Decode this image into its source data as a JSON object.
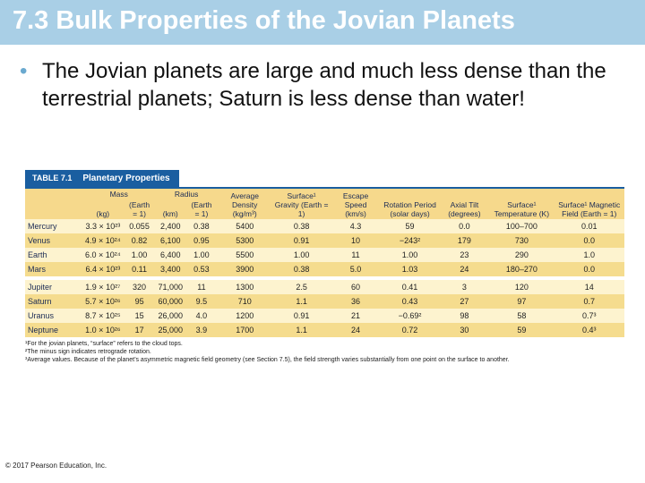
{
  "slide": {
    "title": "7.3 Bulk Properties of the Jovian Planets",
    "bullet": "The Jovian planets are large and much less dense than the terrestrial planets; Saturn is less dense than water!",
    "copyright": "© 2017 Pearson Education, Inc."
  },
  "table": {
    "number": "TABLE 7.1",
    "title": "Planetary Properties",
    "group_mass": "Mass",
    "group_radius": "Radius",
    "headers": {
      "mass_kg": "(kg)",
      "mass_earth": "(Earth = 1)",
      "radius_km": "(km)",
      "radius_earth": "(Earth = 1)",
      "density": "Average Density (kg/m³)",
      "gravity": "Surface¹ Gravity (Earth = 1)",
      "escape": "Escape Speed (km/s)",
      "rotation": "Rotation Period (solar days)",
      "tilt": "Axial Tilt (degrees)",
      "temperature": "Surface¹ Temperature (K)",
      "magnetic": "Surface¹ Magnetic Field (Earth = 1)"
    },
    "rows": [
      {
        "planet": "Mercury",
        "mass": "3.3 × 10²³",
        "mass_e": "0.055",
        "radius": "2,400",
        "radius_e": "0.38",
        "density": "5400",
        "gravity": "0.38",
        "escape": "4.3",
        "rotation": "59",
        "tilt": "0.0",
        "temp": "100–700",
        "mag": "0.01"
      },
      {
        "planet": "Venus",
        "mass": "4.9 × 10²⁴",
        "mass_e": "0.82",
        "radius": "6,100",
        "radius_e": "0.95",
        "density": "5300",
        "gravity": "0.91",
        "escape": "10",
        "rotation": "−243²",
        "tilt": "179",
        "temp": "730",
        "mag": "0.0"
      },
      {
        "planet": "Earth",
        "mass": "6.0 × 10²⁴",
        "mass_e": "1.00",
        "radius": "6,400",
        "radius_e": "1.00",
        "density": "5500",
        "gravity": "1.00",
        "escape": "11",
        "rotation": "1.00",
        "tilt": "23",
        "temp": "290",
        "mag": "1.0"
      },
      {
        "planet": "Mars",
        "mass": "6.4 × 10²³",
        "mass_e": "0.11",
        "radius": "3,400",
        "radius_e": "0.53",
        "density": "3900",
        "gravity": "0.38",
        "escape": "5.0",
        "rotation": "1.03",
        "tilt": "24",
        "temp": "180–270",
        "mag": "0.0"
      },
      {
        "planet": "Jupiter",
        "mass": "1.9 × 10²⁷",
        "mass_e": "320",
        "radius": "71,000",
        "radius_e": "11",
        "density": "1300",
        "gravity": "2.5",
        "escape": "60",
        "rotation": "0.41",
        "tilt": "3",
        "temp": "120",
        "mag": "14"
      },
      {
        "planet": "Saturn",
        "mass": "5.7 × 10²⁶",
        "mass_e": "95",
        "radius": "60,000",
        "radius_e": "9.5",
        "density": "710",
        "gravity": "1.1",
        "escape": "36",
        "rotation": "0.43",
        "tilt": "27",
        "temp": "97",
        "mag": "0.7"
      },
      {
        "planet": "Uranus",
        "mass": "8.7 × 10²⁵",
        "mass_e": "15",
        "radius": "26,000",
        "radius_e": "4.0",
        "density": "1200",
        "gravity": "0.91",
        "escape": "21",
        "rotation": "−0.69²",
        "tilt": "98",
        "temp": "58",
        "mag": "0.7³"
      },
      {
        "planet": "Neptune",
        "mass": "1.0 × 10²⁶",
        "mass_e": "17",
        "radius": "25,000",
        "radius_e": "3.9",
        "density": "1700",
        "gravity": "1.1",
        "escape": "24",
        "rotation": "0.72",
        "tilt": "30",
        "temp": "59",
        "mag": "0.4³"
      }
    ],
    "footnotes": [
      "¹For the jovian planets, “surface” refers to the cloud tops.",
      "²The minus sign indicates retrograde rotation.",
      "³Average values. Because of the planet’s asymmetric magnetic field geometry (see Section 7.5), the field strength varies substantially from one point on the surface to another."
    ]
  }
}
